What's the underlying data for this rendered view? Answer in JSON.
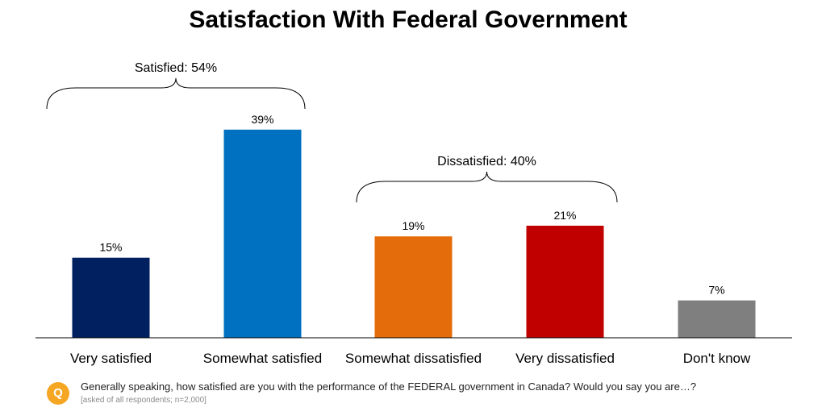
{
  "chart_data": {
    "type": "bar",
    "title": "Satisfaction With Federal Government",
    "categories": [
      "Very satisfied",
      "Somewhat satisfied",
      "Somewhat dissatisfied",
      "Very dissatisfied",
      "Don't know"
    ],
    "values": [
      15,
      39,
      19,
      21,
      7
    ],
    "value_labels": [
      "15%",
      "39%",
      "19%",
      "21%",
      "7%"
    ],
    "colors": [
      "#002060",
      "#0070c0",
      "#e46c0a",
      "#c00000",
      "#7f7f7f"
    ],
    "ylim": [
      0,
      40
    ],
    "grid": false,
    "groups": [
      {
        "label": "Satisfied: 54%",
        "categories": [
          0,
          1
        ]
      },
      {
        "label": "Dissatisfied: 40%",
        "categories": [
          2,
          3
        ]
      }
    ]
  },
  "footer": {
    "badge": "Q",
    "question": "Generally speaking, how satisfied are you with the performance of the FEDERAL government in Canada? Would you say you are…?",
    "note": "[asked of all respondents; n=2,000]",
    "badge_color": "#f5a623"
  }
}
